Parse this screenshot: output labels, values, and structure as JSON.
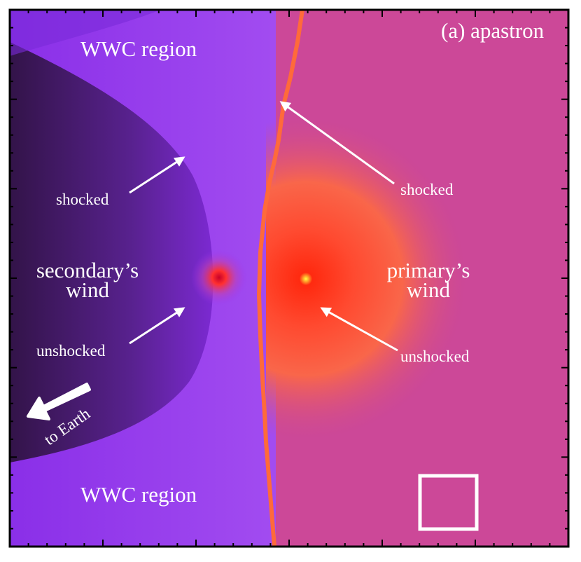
{
  "panel_label": "(a) apastron",
  "wwc_top": "WWC region",
  "wwc_bottom": "WWC region",
  "secondary_wind": [
    "secondary’s",
    "wind"
  ],
  "primary_wind": [
    "primary’s",
    "wind"
  ],
  "shocked_left": "shocked",
  "shocked_right": "shocked",
  "unshocked_left": "unshocked",
  "unshocked_right": "unshocked",
  "earth": "to Earth"
}
